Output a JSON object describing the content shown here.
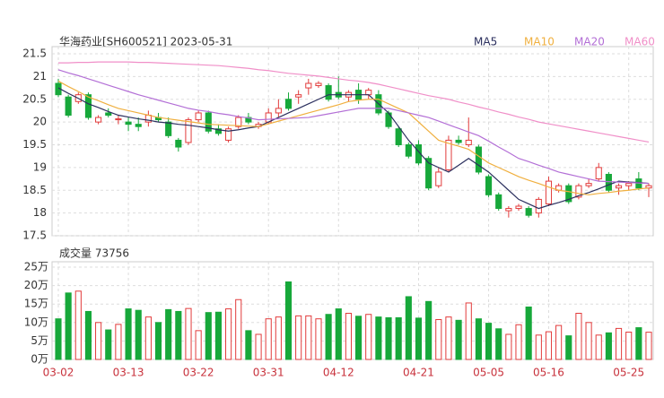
{
  "chart_data": {
    "type": "candlestick",
    "title": "华海药业[SH600521] 2023-05-31",
    "volume_title": "成交量 73756",
    "up_color": "#e23b3b",
    "down_color": "#17a83a",
    "categories": [
      "03-02",
      null,
      null,
      null,
      null,
      null,
      null,
      "03-13",
      null,
      null,
      null,
      null,
      null,
      null,
      "03-22",
      null,
      null,
      null,
      null,
      null,
      null,
      "03-31",
      null,
      null,
      null,
      null,
      null,
      null,
      "04-12",
      null,
      null,
      null,
      null,
      null,
      null,
      null,
      "04-21",
      null,
      null,
      null,
      null,
      null,
      null,
      "05-05",
      null,
      null,
      null,
      null,
      null,
      "05-16",
      null,
      null,
      null,
      null,
      null,
      null,
      null,
      "05-25",
      null,
      null
    ],
    "open": [
      20.85,
      20.55,
      20.45,
      20.6,
      20.0,
      20.2,
      20.05,
      20.0,
      19.95,
      20.0,
      20.1,
      20.0,
      19.6,
      19.55,
      20.05,
      20.2,
      19.85,
      19.6,
      19.9,
      20.1,
      19.9,
      20.0,
      20.2,
      20.5,
      20.55,
      20.75,
      20.8,
      20.8,
      20.65,
      20.55,
      20.7,
      20.6,
      20.6,
      20.2,
      19.85,
      19.5,
      19.5,
      19.2,
      18.6,
      18.95,
      19.6,
      19.5,
      19.45,
      18.8,
      18.4,
      18.05,
      18.1,
      18.1,
      18.0,
      18.2,
      18.5,
      18.6,
      18.35,
      18.6,
      18.75,
      18.85,
      18.55,
      18.6,
      18.75,
      18.55
    ],
    "high": [
      20.95,
      20.6,
      20.65,
      20.65,
      20.15,
      20.3,
      20.15,
      20.1,
      20.1,
      20.25,
      20.2,
      20.1,
      19.65,
      20.1,
      20.25,
      20.25,
      19.95,
      19.9,
      20.15,
      20.2,
      20.0,
      20.3,
      20.5,
      20.65,
      20.7,
      20.95,
      20.9,
      20.85,
      21.0,
      20.7,
      20.85,
      20.75,
      20.7,
      20.25,
      19.9,
      19.55,
      19.6,
      19.25,
      19.0,
      19.7,
      19.7,
      20.1,
      19.5,
      18.85,
      18.45,
      18.15,
      18.2,
      18.15,
      18.35,
      18.8,
      18.65,
      18.65,
      18.65,
      18.75,
      19.1,
      18.9,
      18.65,
      18.7,
      18.9,
      18.65
    ],
    "low": [
      20.55,
      20.1,
      20.4,
      20.05,
      19.95,
      20.1,
      19.95,
      19.8,
      19.8,
      19.9,
      20.0,
      19.65,
      19.35,
      19.5,
      20.0,
      19.75,
      19.7,
      19.55,
      19.85,
      19.95,
      19.85,
      19.95,
      20.1,
      20.25,
      20.4,
      20.6,
      20.75,
      20.45,
      20.5,
      20.45,
      20.4,
      20.5,
      20.15,
      19.85,
      19.45,
      19.2,
      19.05,
      18.5,
      18.55,
      18.9,
      19.5,
      19.45,
      18.85,
      18.35,
      18.05,
      17.9,
      18.05,
      17.9,
      17.9,
      18.15,
      18.45,
      18.2,
      18.3,
      18.55,
      18.7,
      18.45,
      18.4,
      18.5,
      18.5,
      18.35
    ],
    "close": [
      20.6,
      20.15,
      20.6,
      20.1,
      20.1,
      20.15,
      20.07,
      19.95,
      19.9,
      20.15,
      20.05,
      19.7,
      19.45,
      20.05,
      20.2,
      19.8,
      19.75,
      19.85,
      20.1,
      20.0,
      19.95,
      20.2,
      20.3,
      20.3,
      20.6,
      20.85,
      20.85,
      20.5,
      20.55,
      20.65,
      20.5,
      20.7,
      20.2,
      19.9,
      19.5,
      19.25,
      19.1,
      18.55,
      18.9,
      19.6,
      19.55,
      19.6,
      18.9,
      18.4,
      18.1,
      18.1,
      18.15,
      17.95,
      18.3,
      18.7,
      18.6,
      18.25,
      18.6,
      18.65,
      19.0,
      18.5,
      18.6,
      18.65,
      18.55,
      18.6
    ],
    "volume": [
      11,
      18,
      18.5,
      13,
      10,
      8,
      9.5,
      13.7,
      13.3,
      11.5,
      10,
      13.5,
      13,
      13.8,
      7.8,
      12.7,
      12.8,
      13.7,
      16.2,
      7.8,
      6.8,
      11,
      11.5,
      21,
      11.8,
      11.8,
      11,
      12.2,
      13.7,
      12.5,
      11.7,
      12.2,
      11.5,
      11.3,
      11.3,
      17,
      11.2,
      15.7,
      10.8,
      11.5,
      10.6,
      15.3,
      11,
      9.8,
      8.3,
      6.8,
      9.4,
      14.2,
      6.6,
      7.5,
      9.2,
      6.4,
      12.5,
      10,
      6.6,
      7.2,
      8.4,
      7.4,
      8.6,
      7.3756
    ],
    "series": [
      {
        "name": "MA5",
        "color": "#2b2f5e",
        "values": [
          20.75,
          20.63,
          20.52,
          20.4,
          20.32,
          20.23,
          20.15,
          20.11,
          20.07,
          20.04,
          20.0,
          19.98,
          19.95,
          19.93,
          19.9,
          19.87,
          19.83,
          19.8,
          19.83,
          19.87,
          19.9,
          20.0,
          20.1,
          20.2,
          20.3,
          20.4,
          20.5,
          20.6,
          20.6,
          20.6,
          20.6,
          20.6,
          20.4,
          20.2,
          19.9,
          19.6,
          19.35,
          19.1,
          19.0,
          18.9,
          19.05,
          19.2,
          19.05,
          18.9,
          18.7,
          18.5,
          18.3,
          18.2,
          18.1,
          18.17,
          18.23,
          18.3,
          18.38,
          18.45,
          18.53,
          18.62,
          18.7,
          18.68,
          18.67,
          18.65
        ]
      },
      {
        "name": "MA10",
        "color": "#f0b040",
        "values": [
          20.9,
          20.78,
          20.67,
          20.55,
          20.47,
          20.38,
          20.3,
          20.25,
          20.2,
          20.15,
          20.1,
          20.07,
          20.04,
          20.01,
          19.98,
          19.95,
          19.94,
          19.93,
          19.92,
          19.91,
          19.9,
          19.96,
          20.02,
          20.08,
          20.14,
          20.2,
          20.26,
          20.32,
          20.38,
          20.45,
          20.48,
          20.5,
          20.5,
          20.4,
          20.3,
          20.2,
          20.0,
          19.8,
          19.6,
          19.53,
          19.47,
          19.4,
          19.25,
          19.1,
          19.0,
          18.9,
          18.8,
          18.72,
          18.65,
          18.57,
          18.5,
          18.47,
          18.43,
          18.4,
          18.43,
          18.45,
          18.48,
          18.5,
          18.53,
          18.55
        ]
      },
      {
        "name": "MA20",
        "color": "#b36fd6",
        "values": [
          21.15,
          21.08,
          21.02,
          20.95,
          20.88,
          20.81,
          20.74,
          20.67,
          20.6,
          20.54,
          20.48,
          20.42,
          20.36,
          20.3,
          20.26,
          20.23,
          20.19,
          20.16,
          20.12,
          20.09,
          20.05,
          20.06,
          20.07,
          20.08,
          20.09,
          20.1,
          20.14,
          20.18,
          20.22,
          20.26,
          20.3,
          20.3,
          20.3,
          20.3,
          20.25,
          20.2,
          20.15,
          20.1,
          20.02,
          19.94,
          19.86,
          19.78,
          19.7,
          19.58,
          19.45,
          19.33,
          19.2,
          19.13,
          19.05,
          18.98,
          18.9,
          18.85,
          18.8,
          18.75,
          18.7,
          18.69,
          18.68,
          18.67,
          18.66,
          18.65
        ]
      },
      {
        "name": "MA60",
        "color": "#f08fc8",
        "values": [
          21.3,
          21.3,
          21.31,
          21.31,
          21.32,
          21.32,
          21.32,
          21.32,
          21.31,
          21.31,
          21.3,
          21.29,
          21.28,
          21.27,
          21.26,
          21.25,
          21.24,
          21.22,
          21.2,
          21.18,
          21.15,
          21.13,
          21.1,
          21.07,
          21.05,
          21.03,
          21.01,
          20.98,
          20.95,
          20.92,
          20.9,
          20.87,
          20.83,
          20.78,
          20.73,
          20.68,
          20.63,
          20.58,
          20.54,
          20.5,
          20.44,
          20.39,
          20.33,
          20.28,
          20.22,
          20.17,
          20.11,
          20.06,
          20.0,
          19.96,
          19.92,
          19.88,
          19.84,
          19.8,
          19.76,
          19.72,
          19.68,
          19.64,
          19.6,
          19.56
        ]
      }
    ],
    "ylim": [
      17.5,
      21.5
    ],
    "yticks": [
      17.5,
      18,
      18.5,
      19,
      19.5,
      20,
      20.5,
      21,
      21.5
    ],
    "vlim": [
      0,
      25
    ],
    "vticks": [
      {
        "value": 0,
        "label": "0万"
      },
      {
        "value": 5,
        "label": "5万"
      },
      {
        "value": 10,
        "label": "10万"
      },
      {
        "value": 15,
        "label": "15万"
      },
      {
        "value": 20,
        "label": "20万"
      },
      {
        "value": 25,
        "label": "25万"
      }
    ],
    "grid": true
  }
}
